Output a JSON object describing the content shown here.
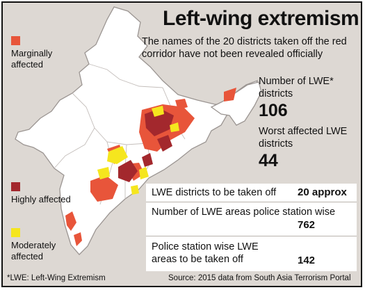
{
  "title": "Left-wing extremism",
  "subtitle": "The names of the 20 districts taken off the red corridor have not been revealed officially",
  "legend": [
    {
      "label": "Marginally affected",
      "color": "#e8553a"
    },
    {
      "label": "Highly affected",
      "color": "#a3282d"
    },
    {
      "label": "Moderately affected",
      "color": "#f5e61e"
    }
  ],
  "stats": [
    {
      "label": "Number of LWE* districts",
      "value": "106"
    },
    {
      "label": "Worst affected LWE districts",
      "value": "44"
    }
  ],
  "rows": [
    {
      "label": "LWE districts to be taken off",
      "value": "20 approx"
    },
    {
      "label": "Number of LWE areas police station wise",
      "value": "762"
    },
    {
      "label": "Police station wise LWE areas to be taken off",
      "value": "142"
    }
  ],
  "footnote": "*LWE: Left-Wing Extremism",
  "source": "Source: 2015 data from South Asia Terrorism Portal",
  "colors": {
    "map_fill": "#ffffff",
    "map_stroke": "#9b9592",
    "background": "#ddd8d3",
    "table_bg": "#ffffff"
  }
}
